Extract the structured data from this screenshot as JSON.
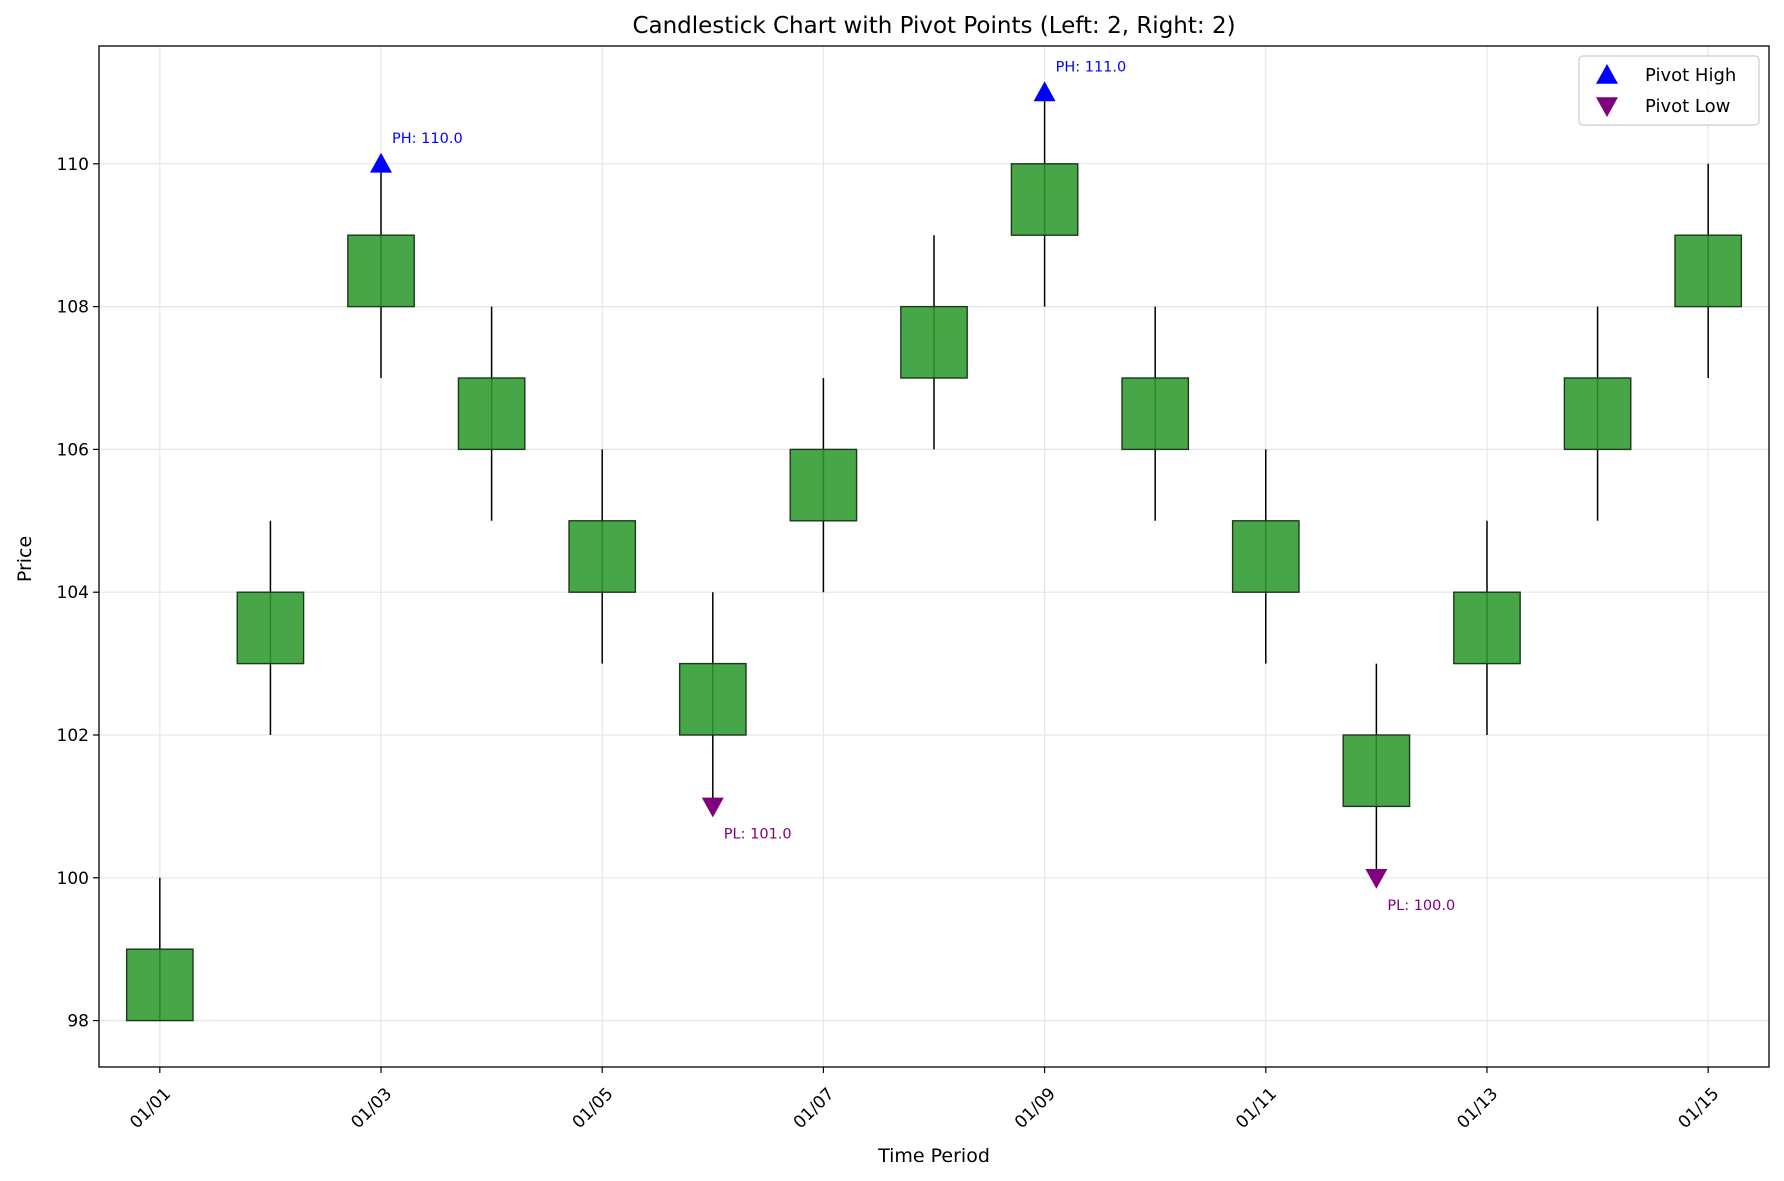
{
  "chart_data": {
    "type": "candlestick",
    "title": "Candlestick Chart with Pivot Points (Left: 2, Right: 2)",
    "xlabel": "Time Period",
    "ylabel": "Price",
    "ylim": [
      97.35,
      111.65
    ],
    "yticks": [
      98,
      100,
      102,
      104,
      106,
      108,
      110
    ],
    "grid": true,
    "legend_position": "top-right",
    "colors": {
      "body": "#2e9a2e",
      "wick": "#000000",
      "pivot_high": "#0000ff",
      "pivot_low": "#800080",
      "grid": "#e6e6e6"
    },
    "candles": [
      {
        "date": "01/01",
        "open": 98,
        "high": 100,
        "low": 98,
        "close": 99
      },
      {
        "date": "01/02",
        "open": 103,
        "high": 105,
        "low": 102,
        "close": 104
      },
      {
        "date": "01/03",
        "open": 108,
        "high": 110,
        "low": 107,
        "close": 109
      },
      {
        "date": "01/04",
        "open": 106,
        "high": 108,
        "low": 105,
        "close": 107
      },
      {
        "date": "01/05",
        "open": 104,
        "high": 106,
        "low": 103,
        "close": 105
      },
      {
        "date": "01/06",
        "open": 102,
        "high": 104,
        "low": 101,
        "close": 103
      },
      {
        "date": "01/07",
        "open": 105,
        "high": 107,
        "low": 104,
        "close": 106
      },
      {
        "date": "01/08",
        "open": 107,
        "high": 109,
        "low": 106,
        "close": 108
      },
      {
        "date": "01/09",
        "open": 109,
        "high": 111,
        "low": 108,
        "close": 110
      },
      {
        "date": "01/10",
        "open": 106,
        "high": 108,
        "low": 105,
        "close": 107
      },
      {
        "date": "01/11",
        "open": 104,
        "high": 106,
        "low": 103,
        "close": 105
      },
      {
        "date": "01/12",
        "open": 101,
        "high": 103,
        "low": 100,
        "close": 102
      },
      {
        "date": "01/13",
        "open": 103,
        "high": 105,
        "low": 102,
        "close": 104
      },
      {
        "date": "01/14",
        "open": 106,
        "high": 108,
        "low": 105,
        "close": 107
      },
      {
        "date": "01/15",
        "open": 108,
        "high": 110,
        "low": 107,
        "close": 109
      }
    ],
    "xtick_labels": [
      "01/01",
      "01/03",
      "01/05",
      "01/07",
      "01/09",
      "01/11",
      "01/13",
      "01/15"
    ],
    "xtick_indices": [
      0,
      2,
      4,
      6,
      8,
      10,
      12,
      14
    ],
    "pivot_highs": [
      {
        "index": 2,
        "value": 110,
        "label": "PH: 110.0"
      },
      {
        "index": 8,
        "value": 111,
        "label": "PH: 111.0"
      }
    ],
    "pivot_lows": [
      {
        "index": 5,
        "value": 101,
        "label": "PL: 101.0"
      },
      {
        "index": 11,
        "value": 100,
        "label": "PL: 100.0"
      }
    ],
    "legend": [
      {
        "label": "Pivot High",
        "marker": "triangle-up"
      },
      {
        "label": "Pivot Low",
        "marker": "triangle-down"
      }
    ]
  }
}
